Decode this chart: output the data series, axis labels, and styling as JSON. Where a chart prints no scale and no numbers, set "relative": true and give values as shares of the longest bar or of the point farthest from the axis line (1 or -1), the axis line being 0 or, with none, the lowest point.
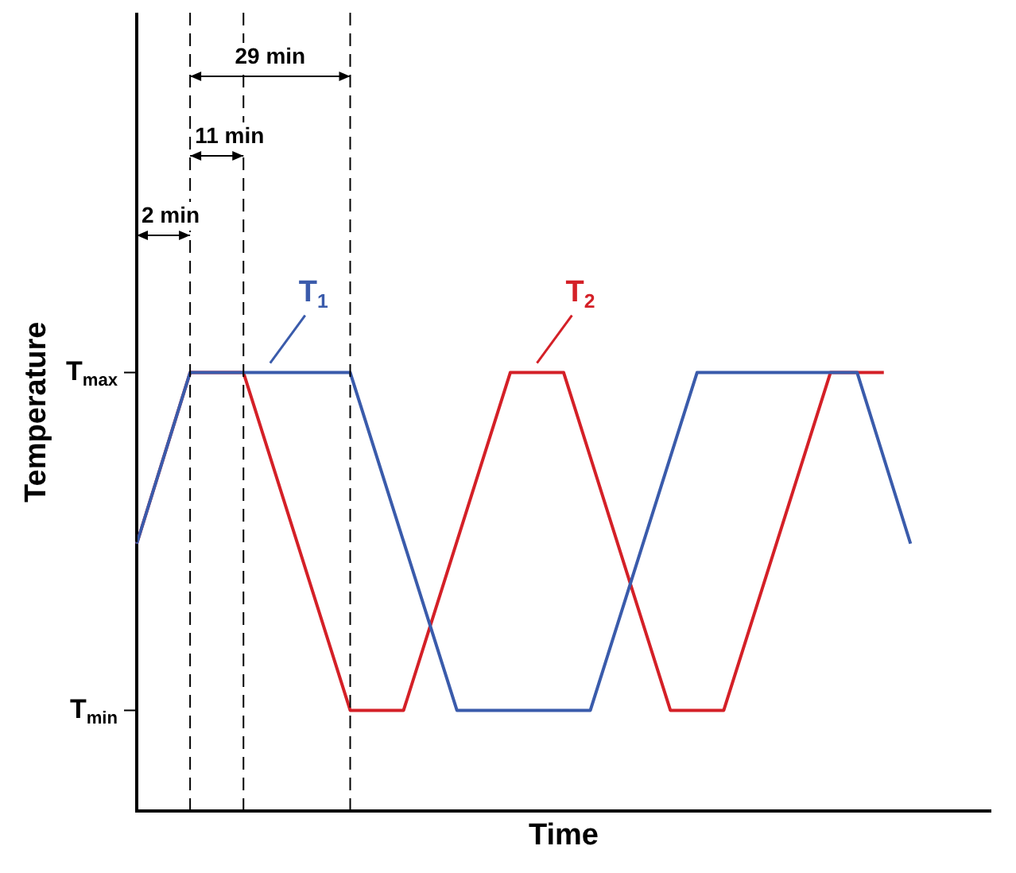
{
  "chart_data": {
    "type": "line",
    "xlabel": "Time",
    "ylabel": "Temperature",
    "relative": true,
    "categories": [
      null,
      null,
      null,
      null,
      null,
      null,
      null,
      null,
      null,
      null,
      null,
      null,
      null,
      null,
      null,
      null,
      null,
      null,
      null,
      null,
      null,
      null,
      null,
      null,
      null,
      null,
      null,
      null,
      null,
      null,
      null,
      null,
      null
    ],
    "series": [
      {
        "name": "T$_{1}$",
        "color": "#3a5bab",
        "values": [
          0.61,
          null,
          1,
          null,
          null,
          null,
          null,
          null,
          1,
          null,
          null,
          null,
          0.23,
          null,
          null,
          null,
          null,
          0.23,
          null,
          null,
          null,
          1,
          null,
          null,
          null,
          null,
          null,
          1,
          null,
          0.61,
          null,
          null,
          null
        ]
      },
      {
        "name": "T$_{2}$",
        "color": "#d42027",
        "values": [
          0.61,
          null,
          1,
          null,
          1,
          null,
          null,
          null,
          0.23,
          null,
          0.23,
          null,
          null,
          null,
          1,
          null,
          1,
          null,
          null,
          null,
          0.23,
          null,
          0.23,
          null,
          null,
          null,
          1,
          null,
          1,
          null,
          null,
          null,
          null
        ]
      }
    ],
    "annotations": [
      "T$_{max}$",
      "T$_{min}$",
      "2 min",
      "11 min",
      "29 min"
    ],
    "grid": "x",
    "legend": false,
    "marker": "none",
    "line_style": "solid"
  }
}
